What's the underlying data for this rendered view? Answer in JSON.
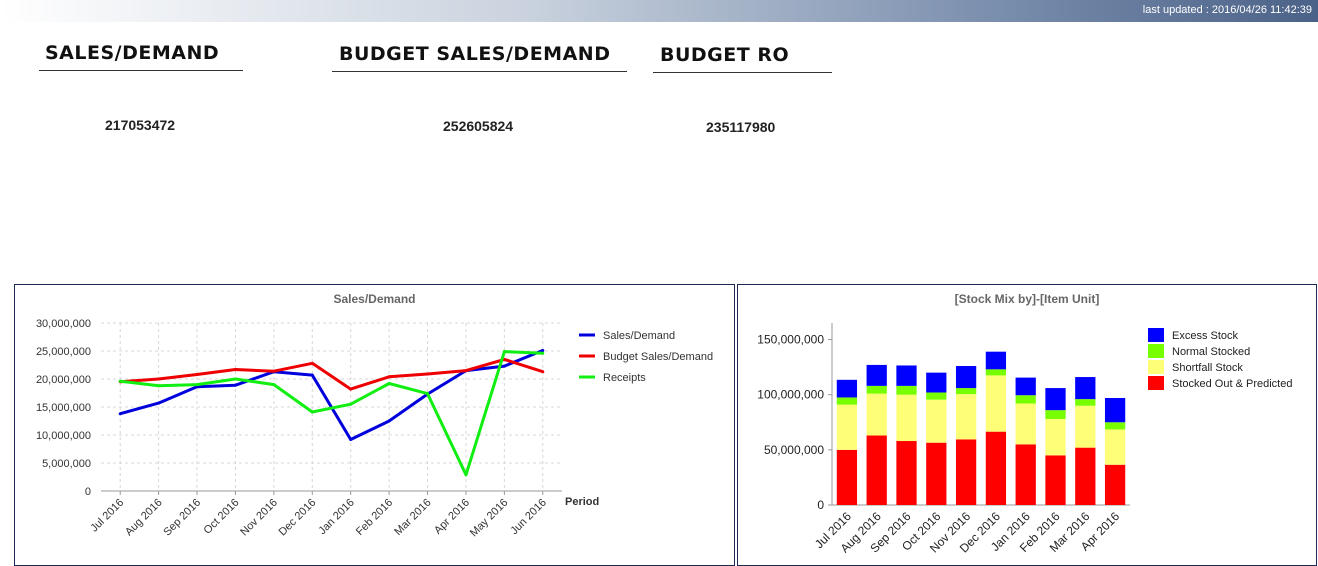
{
  "header": {
    "last_updated": "last updated : 2016/04/26 11:42:39"
  },
  "kpis": [
    {
      "title": "SALES/DEMAND",
      "value": "217053472"
    },
    {
      "title": "BUDGET SALES/DEMAND",
      "value": "252605824"
    },
    {
      "title": "BUDGET RO",
      "value": "235117980"
    }
  ],
  "chart_data": [
    {
      "type": "line",
      "title": "Sales/Demand",
      "xlabel": "Period",
      "ylabel": "",
      "ylim": [
        0,
        30000000
      ],
      "yticks": [
        "0",
        "5,000,000",
        "10,000,000",
        "15,000,000",
        "20,000,000",
        "25,000,000",
        "30,000,000"
      ],
      "grid": true,
      "legend": "right",
      "categories": [
        "Jul 2016",
        "Aug 2016",
        "Sep 2016",
        "Oct 2016",
        "Nov 2016",
        "Dec 2016",
        "Jan 2016",
        "Feb 2016",
        "Mar 2016",
        "Apr 2016",
        "May 2016",
        "Jun 2016"
      ],
      "series": [
        {
          "name": "Sales/Demand",
          "color": "#0000dd",
          "values": [
            13800000,
            15700000,
            18600000,
            18900000,
            21300000,
            20700000,
            9200000,
            12500000,
            17300000,
            21500000,
            22300000,
            25100000
          ]
        },
        {
          "name": "Budget Sales/Demand",
          "color": "#ee0000",
          "values": [
            19500000,
            20000000,
            20800000,
            21700000,
            21400000,
            22800000,
            18200000,
            20400000,
            20900000,
            21500000,
            23500000,
            21300000
          ]
        },
        {
          "name": "Receipts",
          "color": "#11ee11",
          "values": [
            19600000,
            18800000,
            19000000,
            20000000,
            19000000,
            14100000,
            15500000,
            19200000,
            17400000,
            2900000,
            24900000,
            24600000
          ]
        }
      ]
    },
    {
      "type": "bar",
      "stacked": true,
      "title": "[Stock Mix by]-[Item Unit]",
      "xlabel": "",
      "ylabel": "",
      "ylim": [
        0,
        165000000
      ],
      "yticks": [
        "0",
        "50,000,000",
        "100,000,000",
        "150,000,000"
      ],
      "legend": "right",
      "categories": [
        "Jul 2016",
        "Aug 2016",
        "Sep 2016",
        "Oct 2016",
        "Nov 2016",
        "Dec 2016",
        "Jan 2016",
        "Feb 2016",
        "Mar 2016",
        "Apr 2016"
      ],
      "series": [
        {
          "name": "Stocked Out & Predicted",
          "color": "#ff0000",
          "values": [
            50000000,
            63000000,
            58000000,
            56500000,
            59500000,
            66500000,
            55000000,
            45000000,
            52000000,
            36500000
          ]
        },
        {
          "name": "Shortfall Stock",
          "color": "#ffff77",
          "values": [
            41000000,
            38000000,
            42000000,
            39000000,
            41000000,
            51000000,
            37000000,
            33000000,
            38000000,
            32000000
          ]
        },
        {
          "name": "Normal Stocked",
          "color": "#77ff00",
          "values": [
            6500000,
            7000000,
            8000000,
            6500000,
            5500000,
            5500000,
            7500000,
            8000000,
            6000000,
            6500000
          ]
        },
        {
          "name": "Excess Stock",
          "color": "#0000ff",
          "values": [
            16000000,
            19000000,
            18500000,
            18000000,
            20000000,
            16000000,
            16000000,
            20000000,
            20000000,
            22000000
          ]
        }
      ]
    }
  ]
}
